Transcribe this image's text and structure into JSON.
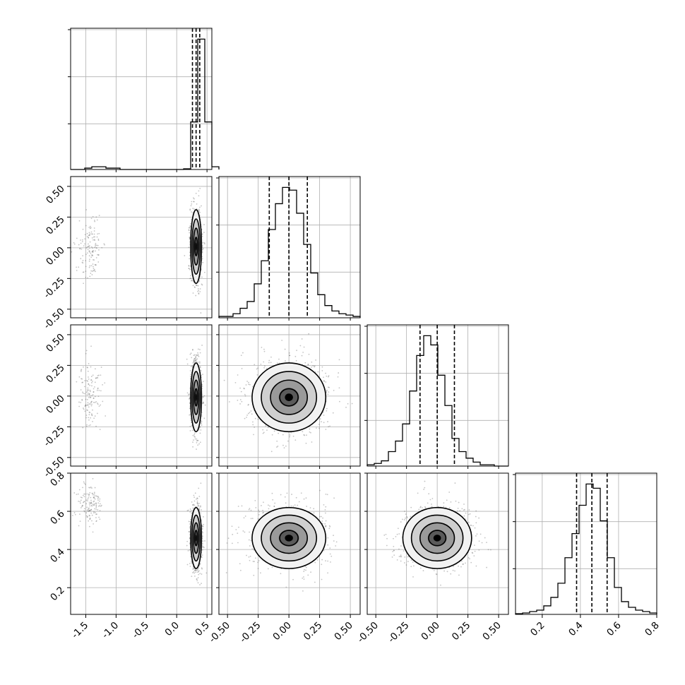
{
  "chart_data": {
    "type": "corner",
    "grid": true,
    "parameters": [
      {
        "index": 0,
        "range": [
          -1.75,
          0.58
        ],
        "ticks": [
          "-1.5",
          "-1.0",
          "-0.5",
          "0.0",
          "0.5"
        ],
        "tick_values": [
          -1.5,
          -1.0,
          -0.5,
          0.0,
          0.5
        ],
        "quantiles": [
          0.26,
          0.32,
          0.38
        ],
        "label": ""
      },
      {
        "index": 1,
        "range": [
          -0.57,
          0.58
        ],
        "ticks": [
          "-0.50",
          "-0.25",
          "0.00",
          "0.25",
          "0.50"
        ],
        "tick_values": [
          -0.5,
          -0.25,
          0.0,
          0.25,
          0.5
        ],
        "quantiles": [
          -0.16,
          0.0,
          0.15
        ],
        "label": ""
      },
      {
        "index": 2,
        "range": [
          -0.57,
          0.58
        ],
        "ticks": [
          "-0.50",
          "-0.25",
          "0.00",
          "0.25",
          "0.50"
        ],
        "tick_values": [
          -0.5,
          -0.25,
          0.0,
          0.25,
          0.5
        ],
        "quantiles": [
          -0.14,
          0.0,
          0.14
        ],
        "label": ""
      },
      {
        "index": 3,
        "range": [
          0.06,
          0.8
        ],
        "ticks": [
          "0.2",
          "0.4",
          "0.6",
          "0.8"
        ],
        "tick_values": [
          0.2,
          0.4,
          0.6,
          0.8
        ],
        "quantiles": [
          0.38,
          0.46,
          0.54
        ],
        "label": ""
      }
    ],
    "histograms": [
      {
        "param": 0,
        "bin_start": -1.75,
        "bin_width": 0.1165,
        "counts": [
          0,
          0,
          1,
          2,
          2,
          1,
          1,
          0,
          0,
          0,
          0,
          0,
          0,
          0,
          0,
          0,
          0.5,
          35,
          96,
          35,
          2
        ]
      },
      {
        "param": 1,
        "bin_start": -0.57,
        "bin_width": 0.0575,
        "counts": [
          1,
          1,
          3,
          7,
          12,
          25,
          42,
          65,
          84,
          96,
          94,
          77,
          54,
          33,
          17,
          9,
          5,
          3,
          2,
          1
        ]
      },
      {
        "param": 2,
        "bin_start": -0.57,
        "bin_width": 0.0575,
        "counts": [
          1,
          2,
          4,
          11,
          19,
          32,
          57,
          84,
          99,
          92,
          69,
          46,
          21,
          11,
          6,
          3,
          1,
          1,
          0,
          0
        ]
      },
      {
        "param": 3,
        "bin_start": 0.06,
        "bin_width": 0.037,
        "counts": [
          0.5,
          1,
          2,
          3,
          6,
          12,
          22,
          40,
          57,
          77,
          92,
          89,
          66,
          40,
          19,
          9,
          5,
          3,
          2,
          1
        ]
      }
    ],
    "pairs": [
      {
        "x": 0,
        "y": 1,
        "center": [
          0.32,
          0.01
        ],
        "sd": [
          0.045,
          0.15
        ],
        "outlier_cluster": {
          "center": [
            -1.42,
            0.0
          ],
          "sd": [
            0.1,
            0.14
          ]
        }
      },
      {
        "x": 0,
        "y": 2,
        "center": [
          0.32,
          -0.01
        ],
        "sd": [
          0.045,
          0.14
        ],
        "outlier_cluster": {
          "center": [
            -1.42,
            0.0
          ],
          "sd": [
            0.1,
            0.14
          ]
        }
      },
      {
        "x": 0,
        "y": 3,
        "center": [
          0.32,
          0.46
        ],
        "sd": [
          0.045,
          0.08
        ],
        "outlier_cluster": {
          "center": [
            -1.42,
            0.64
          ],
          "sd": [
            0.1,
            0.05
          ]
        }
      },
      {
        "x": 1,
        "y": 2,
        "center": [
          0.0,
          -0.01
        ],
        "sd": [
          0.15,
          0.14
        ]
      },
      {
        "x": 1,
        "y": 3,
        "center": [
          0.0,
          0.46
        ],
        "sd": [
          0.15,
          0.08
        ]
      },
      {
        "x": 2,
        "y": 3,
        "center": [
          0.0,
          0.46
        ],
        "sd": [
          0.14,
          0.08
        ]
      }
    ],
    "style": {
      "line_color": "#000000",
      "grid_color": "#b0b0b0",
      "point_color": "#555555",
      "fill_light": "#f2f2f2",
      "fill_dark": "#000000"
    }
  }
}
